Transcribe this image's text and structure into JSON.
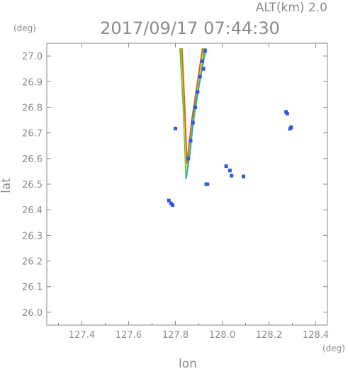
{
  "chart_data": {
    "type": "scatter",
    "title": "2017/09/17 07:44:30",
    "subtitle": "ALT(km) 2.0",
    "xlabel": "lon",
    "ylabel": "lat",
    "xunit": "(deg)",
    "yunit": "(deg)",
    "xlim": [
      127.25,
      128.45
    ],
    "ylim": [
      25.95,
      27.05
    ],
    "grid": false,
    "xticks": [
      127.4,
      127.6,
      127.8,
      128.0,
      128.2,
      128.4
    ],
    "xtick_labels": [
      "127.4",
      "127.6",
      "127.8",
      "128.0",
      "128.2",
      "128.4"
    ],
    "yticks": [
      26.0,
      26.1,
      26.2,
      26.3,
      26.4,
      26.5,
      26.6,
      26.7,
      26.8,
      26.9,
      27.0
    ],
    "ytick_labels": [
      "26.0",
      "26.1",
      "26.2",
      "26.3",
      "26.4",
      "26.5",
      "26.6",
      "26.7",
      "26.8",
      "26.9",
      "27.0"
    ],
    "series": [
      {
        "color": "#2f56e6",
        "points": [
          [
            127.915,
            26.98
          ],
          [
            127.905,
            26.92
          ],
          [
            127.895,
            26.86
          ],
          [
            127.885,
            26.8
          ],
          [
            127.875,
            26.74
          ],
          [
            127.865,
            26.67
          ],
          [
            127.855,
            26.6
          ],
          [
            127.927,
            27.02
          ],
          [
            127.92,
            26.95
          ],
          [
            128.273,
            26.782
          ],
          [
            128.278,
            26.775
          ],
          [
            128.295,
            26.722
          ],
          [
            128.29,
            26.716
          ],
          [
            128.033,
            26.553
          ],
          [
            128.04,
            26.533
          ],
          [
            127.937,
            26.5
          ],
          [
            127.932,
            26.5
          ],
          [
            127.788,
            26.418
          ],
          [
            127.781,
            26.425
          ],
          [
            127.772,
            26.436
          ],
          [
            127.8,
            26.717
          ],
          [
            128.091,
            26.53
          ],
          [
            128.017,
            26.57
          ]
        ]
      }
    ],
    "lines": [
      {
        "color": "#32c83c",
        "points": [
          [
            127.82,
            27.03
          ],
          [
            127.834,
            26.8
          ],
          [
            127.846,
            26.52
          ],
          [
            127.87,
            26.7
          ],
          [
            127.925,
            27.03
          ]
        ]
      },
      {
        "color": "#e8e81a",
        "points": [
          [
            127.825,
            27.03
          ],
          [
            127.838,
            26.8
          ],
          [
            127.848,
            26.54
          ],
          [
            127.872,
            26.72
          ],
          [
            127.92,
            27.03
          ]
        ]
      },
      {
        "color": "#e06020",
        "points": [
          [
            127.828,
            27.03
          ],
          [
            127.84,
            26.8
          ],
          [
            127.849,
            26.58
          ],
          [
            127.87,
            26.75
          ],
          [
            127.916,
            27.03
          ]
        ]
      },
      {
        "color": "#20b0b0",
        "points": [
          [
            127.845,
            26.52
          ],
          [
            127.862,
            26.62
          ],
          [
            127.88,
            26.78
          ],
          [
            127.93,
            27.03
          ]
        ]
      }
    ]
  }
}
